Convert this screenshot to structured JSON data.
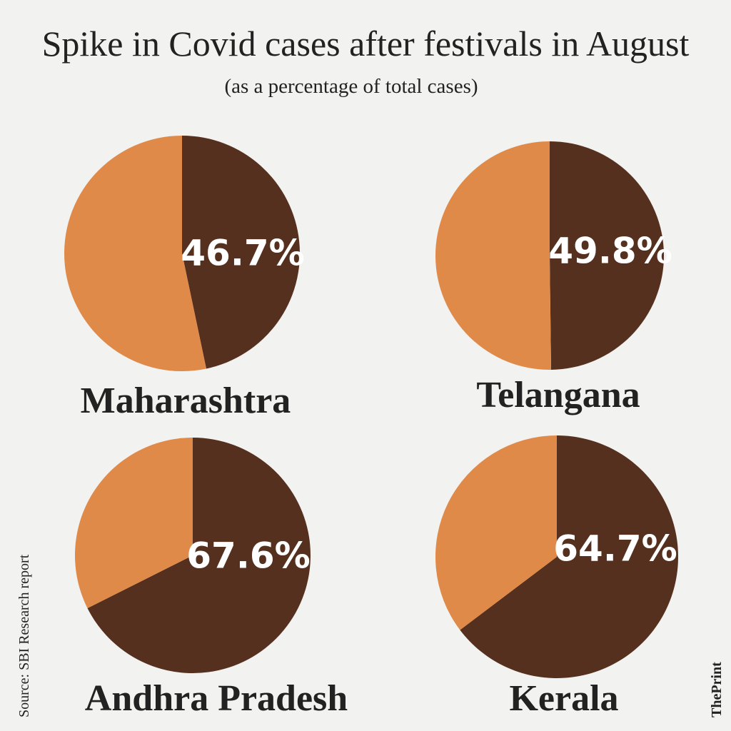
{
  "title": "Spike in Covid cases after festivals in August",
  "subtitle": "(as a percentage of total cases)",
  "source": "Source: SBI Research report",
  "brand": "ThePrint",
  "chart_data": [
    {
      "type": "pie",
      "title": "Maharashtra",
      "values": [
        46.7,
        53.3
      ],
      "value_labels": [
        "46.7%",
        null
      ],
      "colors": [
        "#55301e",
        "#e08a4a"
      ]
    },
    {
      "type": "pie",
      "title": "Telangana",
      "values": [
        49.8,
        50.2
      ],
      "value_labels": [
        "49.8%",
        null
      ],
      "colors": [
        "#55301e",
        "#e08a4a"
      ]
    },
    {
      "type": "pie",
      "title": "Andhra Pradesh",
      "values": [
        67.6,
        32.4
      ],
      "value_labels": [
        "67.6%",
        null
      ],
      "colors": [
        "#55301e",
        "#e08a4a"
      ]
    },
    {
      "type": "pie",
      "title": "Kerala",
      "values": [
        64.7,
        35.3
      ],
      "value_labels": [
        "64.7%",
        null
      ],
      "colors": [
        "#55301e",
        "#e08a4a"
      ]
    }
  ]
}
